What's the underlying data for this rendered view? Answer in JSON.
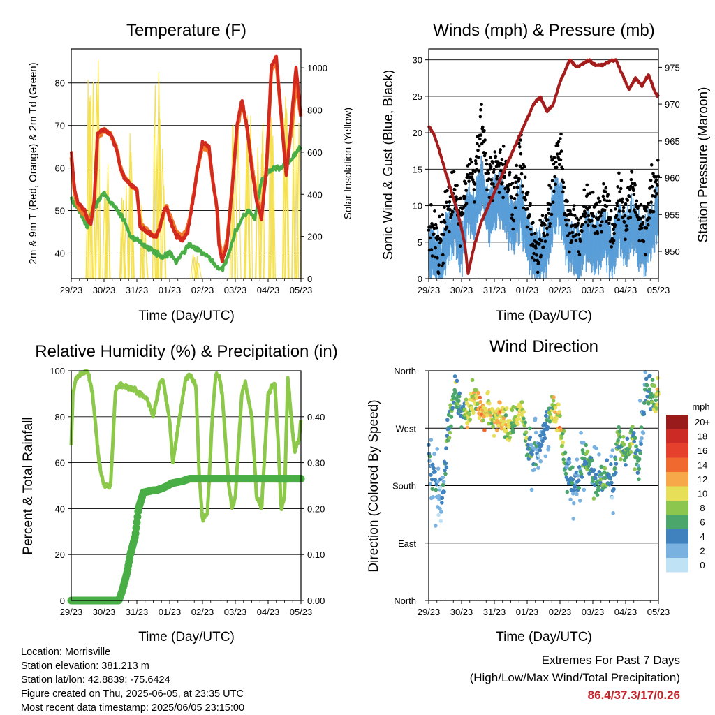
{
  "colors": {
    "temp2m": "#d42a1e",
    "temp9m": "#f07828",
    "dewpoint": "#4aae46",
    "solar": "#f5e04e",
    "sonic_wind": "#5a9ed8",
    "gust": "#000000",
    "pressure": "#a51c1c",
    "rh": "#8cc84a",
    "precip": "#4aae46"
  },
  "x_ticks": [
    "29/23",
    "30/23",
    "31/23",
    "01/23",
    "02/23",
    "03/23",
    "04/23",
    "05/23"
  ],
  "chart_data": [
    {
      "type": "line",
      "title": "Temperature (F)",
      "xlabel": "Time (Day/UTC)",
      "ylabel": "2m & 9m T (Red, Orange) & 2m Td (Green)",
      "y2label": "Solar Insolation (Yellow)",
      "x_range": [
        0,
        7
      ],
      "ylim": [
        34,
        88
      ],
      "y_ticks": [
        40,
        50,
        60,
        70,
        80
      ],
      "y2lim": [
        0,
        1090
      ],
      "y2_ticks": [
        0,
        200,
        400,
        600,
        800,
        1000
      ],
      "grid": true,
      "series": [
        {
          "key": "t2m",
          "x": [
            0,
            0.1,
            0.2,
            0.4,
            0.5,
            0.6,
            0.7,
            0.8,
            1.0,
            1.2,
            1.4,
            1.5,
            1.6,
            1.8,
            2.0,
            2.1,
            2.5,
            2.6,
            2.7,
            2.8,
            2.9,
            3.0,
            3.2,
            3.4,
            3.55,
            3.7,
            3.85,
            4.0,
            4.2,
            4.3,
            4.45,
            4.5,
            4.6,
            4.75,
            4.9,
            5.05,
            5.2,
            5.35,
            5.5,
            5.65,
            5.8,
            5.95,
            6.1,
            6.25,
            6.4,
            6.55,
            6.7,
            6.85,
            7.0
          ],
          "y": [
            64,
            55,
            52,
            50,
            48,
            47,
            52,
            68,
            69,
            68,
            64,
            60,
            58,
            56,
            55,
            46,
            44,
            44,
            46,
            49,
            51,
            48,
            44,
            43,
            45,
            52,
            60,
            66,
            65,
            58,
            50,
            42,
            38,
            42,
            55,
            70,
            76,
            70,
            60,
            52,
            48,
            60,
            84,
            86,
            72,
            58,
            70,
            84,
            72
          ]
        },
        {
          "key": "t9m",
          "x": [
            0,
            0.1,
            0.2,
            0.4,
            0.5,
            0.6,
            0.7,
            0.8,
            1.0,
            1.2,
            1.4,
            1.5,
            1.6,
            1.8,
            2.0,
            2.1,
            2.5,
            2.6,
            2.7,
            2.8,
            2.9,
            3.0,
            3.2,
            3.4,
            3.55,
            3.7,
            3.85,
            4.0,
            4.2,
            4.3,
            4.45,
            4.5,
            4.6,
            4.75,
            4.9,
            5.05,
            5.2,
            5.35,
            5.5,
            5.65,
            5.8,
            5.95,
            6.1,
            6.25,
            6.4,
            6.55,
            6.7,
            6.85,
            7.0
          ],
          "y": [
            63,
            54,
            51,
            49,
            48,
            48,
            52,
            67,
            69,
            68,
            64,
            60,
            58,
            56,
            55,
            47,
            44,
            44,
            46,
            49,
            51,
            49,
            45,
            44,
            46,
            52,
            60,
            65,
            64,
            58,
            50,
            43,
            39,
            43,
            55,
            69,
            75,
            70,
            61,
            53,
            49,
            60,
            83,
            85,
            72,
            60,
            68,
            80,
            72
          ]
        },
        {
          "key": "td",
          "x": [
            0,
            0.3,
            0.5,
            0.6,
            0.8,
            1.0,
            1.2,
            1.4,
            1.6,
            1.8,
            2.0,
            2.2,
            2.4,
            2.6,
            2.8,
            3.0,
            3.2,
            3.4,
            3.6,
            3.8,
            4.0,
            4.2,
            4.4,
            4.6,
            4.8,
            5.0,
            5.2,
            5.4,
            5.6,
            5.8,
            6.0,
            6.2,
            6.4,
            6.6,
            6.8,
            7.0
          ],
          "y": [
            53,
            49,
            46,
            49,
            52,
            54,
            52,
            50,
            48,
            44,
            43,
            42,
            41,
            40,
            39,
            40,
            38,
            40,
            42,
            41,
            40,
            39,
            37,
            36,
            40,
            45,
            48,
            50,
            48,
            57,
            59,
            60,
            60,
            61,
            63,
            65
          ]
        },
        {
          "key": "solar_peaks",
          "x": [
            0.55,
            0.75,
            1.05,
            1.6,
            1.8,
            2.2,
            2.6,
            2.75,
            3.8,
            5.0,
            5.4,
            5.75,
            6.1,
            6.5,
            6.85
          ],
          "y": [
            980,
            1080,
            620,
            520,
            720,
            350,
            1030,
            800,
            120,
            760,
            880,
            740,
            950,
            900,
            980
          ]
        }
      ]
    },
    {
      "type": "scatter",
      "title": "Winds (mph) & Pressure (mb)",
      "xlabel": "Time (Day/UTC)",
      "ylabel": "Sonic Wind & Gust (Blue, Black)",
      "y2label": "Station Pressure (Maroon)",
      "x_range": [
        0,
        7
      ],
      "ylim": [
        0,
        31.5
      ],
      "y_ticks": [
        0,
        5,
        10,
        15,
        20,
        25,
        30
      ],
      "y2lim": [
        946.3,
        977.5
      ],
      "y2_ticks": [
        950,
        955,
        960,
        965,
        970,
        975
      ],
      "grid": true,
      "series": [
        {
          "key": "pressure",
          "x": [
            0,
            0.15,
            0.3,
            0.5,
            0.7,
            0.9,
            1.1,
            1.2,
            1.4,
            1.6,
            1.8,
            2.0,
            2.2,
            2.4,
            2.6,
            2.8,
            3.0,
            3.2,
            3.4,
            3.6,
            3.8,
            4.0,
            4.3,
            4.5,
            4.7,
            4.9,
            5.0,
            5.1,
            5.3,
            5.5,
            5.7,
            5.9,
            6.1,
            6.3,
            6.5,
            6.7,
            6.9,
            7.0
          ],
          "y": [
            967,
            966,
            964,
            961,
            958,
            955,
            951,
            947,
            951,
            954,
            956,
            958,
            960,
            962,
            964,
            966,
            968,
            970,
            971,
            969,
            970,
            973,
            976,
            975,
            975.5,
            976,
            975.5,
            975.3,
            975.3,
            975.8,
            976,
            974,
            972,
            973.5,
            972.5,
            974,
            971.5,
            971
          ]
        },
        {
          "key": "wind_mean",
          "x": [
            0,
            0.2,
            0.4,
            0.6,
            0.8,
            1.0,
            1.2,
            1.4,
            1.6,
            1.8,
            2.0,
            2.2,
            2.4,
            2.6,
            2.8,
            3.0,
            3.2,
            3.4,
            3.6,
            3.8,
            4.0,
            4.2,
            4.4,
            4.6,
            4.8,
            5.0,
            5.2,
            5.4,
            5.6,
            5.8,
            6.0,
            6.2,
            6.4,
            6.6,
            6.8,
            7.0
          ],
          "y": [
            4,
            3,
            2,
            6,
            7,
            4,
            10,
            8,
            13,
            9,
            10,
            11,
            9,
            7,
            10,
            6,
            3,
            3,
            4,
            9,
            11,
            5,
            4,
            3,
            6,
            5,
            5,
            6,
            3,
            8,
            5,
            8,
            5,
            4,
            7,
            9
          ]
        },
        {
          "key": "gust_mean",
          "x": [
            0,
            0.2,
            0.4,
            0.6,
            0.8,
            1.0,
            1.2,
            1.4,
            1.6,
            1.8,
            2.0,
            2.2,
            2.4,
            2.6,
            2.8,
            3.0,
            3.2,
            3.4,
            3.6,
            3.8,
            4.0,
            4.2,
            4.4,
            4.6,
            4.8,
            5.0,
            5.2,
            5.4,
            5.6,
            5.8,
            6.0,
            6.2,
            6.4,
            6.6,
            6.8,
            7.0
          ],
          "y": [
            7,
            5,
            5,
            10,
            12,
            8,
            15,
            12,
            22,
            14,
            15,
            16,
            14,
            11,
            17,
            10,
            5,
            5,
            7,
            14,
            18,
            8,
            7,
            6,
            10,
            8,
            9,
            11,
            6,
            13,
            8,
            13,
            9,
            7,
            12,
            14
          ]
        }
      ]
    },
    {
      "type": "line",
      "title": "Relative Humidity (%) & Precipitation (in)",
      "xlabel": "Time (Day/UTC)",
      "ylabel": "Percent & Total Rainfall",
      "x_range": [
        0,
        7
      ],
      "ylim": [
        0,
        100
      ],
      "y_ticks": [
        0,
        20,
        40,
        60,
        80,
        100
      ],
      "y2lim": [
        0,
        0.5
      ],
      "y2_ticks": [
        "0.00",
        "0.10",
        "0.20",
        "0.30",
        "0.40"
      ],
      "grid": true,
      "series": [
        {
          "key": "rh",
          "x": [
            0,
            0.05,
            0.15,
            0.3,
            0.5,
            0.65,
            0.85,
            1.0,
            1.2,
            1.35,
            1.5,
            1.7,
            1.9,
            2.1,
            2.3,
            2.5,
            2.7,
            2.8,
            3.0,
            3.1,
            3.3,
            3.5,
            3.65,
            3.8,
            3.9,
            4.0,
            4.15,
            4.3,
            4.4,
            4.5,
            4.6,
            4.8,
            4.9,
            5.0,
            5.2,
            5.3,
            5.5,
            5.65,
            5.8,
            6.0,
            6.2,
            6.3,
            6.4,
            6.5,
            6.6,
            6.8,
            6.95,
            7.0
          ],
          "y": [
            68,
            90,
            97,
            99,
            100,
            90,
            60,
            50,
            50,
            92,
            94,
            93,
            92,
            90,
            88,
            80,
            95,
            96,
            78,
            60,
            80,
            97,
            98,
            93,
            55,
            35,
            38,
            80,
            98,
            98,
            90,
            50,
            40,
            45,
            90,
            95,
            80,
            45,
            40,
            90,
            95,
            70,
            40,
            45,
            97,
            65,
            70,
            80
          ]
        },
        {
          "key": "precip",
          "x": [
            0,
            1.45,
            1.55,
            1.7,
            1.8,
            1.95,
            2.05,
            2.2,
            2.5,
            2.6,
            2.8,
            2.95,
            3.05,
            3.4,
            3.6,
            7.0
          ],
          "y": [
            0,
            0,
            0.02,
            0.06,
            0.1,
            0.14,
            0.2,
            0.235,
            0.24,
            0.24,
            0.245,
            0.25,
            0.255,
            0.26,
            0.265,
            0.265
          ]
        }
      ]
    },
    {
      "type": "scatter",
      "title": "Wind Direction",
      "xlabel": "Time (Day/UTC)",
      "ylabel": "Direction (Colored By Speed)",
      "x_range": [
        0,
        7
      ],
      "ylim": [
        0,
        360
      ],
      "y_tick_labels": [
        "North",
        "East",
        "South",
        "West",
        "North"
      ],
      "grid": true,
      "legend": {
        "title": "mph",
        "position": "right",
        "labels": [
          "20+",
          "18",
          "16",
          "14",
          "12",
          "10",
          "8",
          "6",
          "4",
          "2",
          "0"
        ],
        "colors": [
          "#991b1b",
          "#cc2a24",
          "#e4402c",
          "#f06a30",
          "#f7a94a",
          "#e8df58",
          "#8dc64f",
          "#4aa66b",
          "#3f82bd",
          "#79b2e0",
          "#bfe3f5"
        ]
      },
      "series": [
        {
          "key": "dir_mean",
          "x": [
            0,
            0.2,
            0.4,
            0.6,
            0.8,
            1.0,
            1.2,
            1.4,
            1.6,
            1.8,
            2.0,
            2.2,
            2.4,
            2.6,
            2.8,
            3.0,
            3.2,
            3.4,
            3.6,
            3.8,
            4.0,
            4.2,
            4.4,
            4.6,
            4.8,
            5.0,
            5.2,
            5.4,
            5.6,
            5.8,
            6.0,
            6.2,
            6.4,
            6.6,
            6.8,
            7.0
          ],
          "y": [
            230,
            190,
            160,
            270,
            330,
            290,
            300,
            320,
            290,
            300,
            280,
            290,
            270,
            280,
            300,
            250,
            230,
            250,
            280,
            300,
            280,
            200,
            180,
            190,
            230,
            190,
            180,
            200,
            180,
            260,
            220,
            260,
            210,
            330,
            320,
            320
          ]
        }
      ]
    }
  ],
  "info": {
    "location": "Location: Morrisville",
    "elevation": "Station elevation: 381.213 m",
    "latlon": "Station lat/lon: 42.8839; -75.6424",
    "created": "Figure created on Thu, 2025-06-05, at 23:35 UTC",
    "recent": "Most recent data timestamp: 2025/06/05 23:15:00"
  },
  "extremes": {
    "title": "Extremes For Past 7 Days",
    "subtitle": "(High/Low/Max Wind/Total Precipitation)",
    "values": "86.4/37.3/17/0.26"
  }
}
